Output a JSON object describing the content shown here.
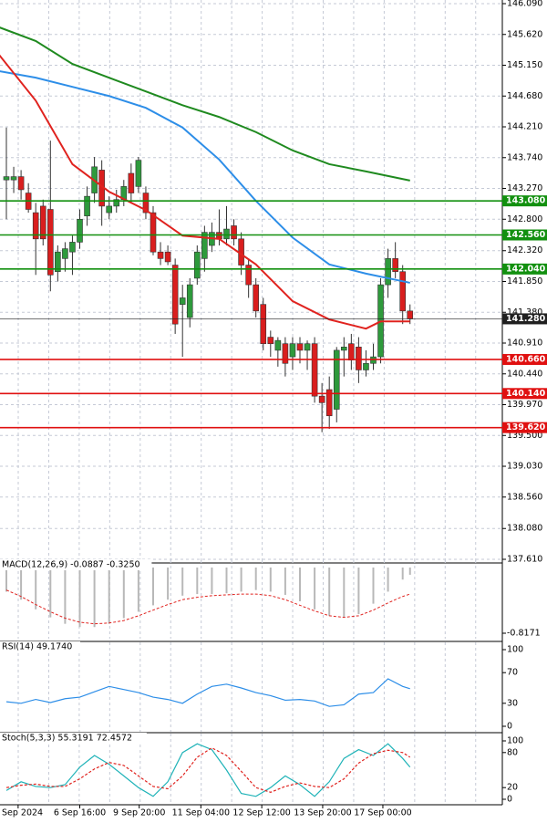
{
  "chart_data": [
    {
      "type": "candlestick",
      "x": [
        0,
        1,
        2,
        3,
        4,
        5,
        6,
        7,
        8,
        9,
        10,
        11,
        12,
        13,
        14,
        15,
        16,
        17,
        18,
        19,
        20,
        21,
        22,
        23,
        24,
        25,
        26,
        27,
        28,
        29,
        30,
        31,
        32,
        33,
        34,
        35,
        36,
        37,
        38,
        39,
        40,
        41,
        42,
        43,
        44,
        45,
        46,
        47,
        48,
        49,
        50,
        51,
        52,
        53,
        54,
        55
      ],
      "open": [
        143.4,
        143.4,
        143.45,
        143.2,
        142.9,
        143.0,
        142.95,
        142.0,
        142.2,
        142.3,
        142.45,
        142.85,
        143.2,
        143.55,
        142.9,
        143.0,
        143.1,
        143.5,
        143.3,
        143.2,
        142.9,
        142.3,
        142.3,
        142.1,
        141.5,
        141.3,
        141.9,
        142.2,
        142.4,
        142.6,
        142.5,
        142.7,
        142.5,
        142.1,
        141.8,
        141.5,
        141.0,
        140.8,
        140.9,
        140.7,
        140.9,
        140.8,
        140.9,
        140.1,
        140.2,
        139.9,
        140.8,
        140.9,
        140.85,
        140.5,
        140.6,
        140.7,
        141.8,
        142.2,
        142.0,
        141.4
      ],
      "high": [
        144.2,
        143.6,
        143.55,
        143.35,
        143.05,
        143.1,
        144.0,
        142.4,
        142.45,
        142.55,
        142.95,
        143.3,
        143.75,
        143.7,
        143.15,
        143.25,
        143.4,
        143.65,
        143.75,
        143.3,
        143.0,
        142.45,
        142.4,
        142.2,
        141.8,
        141.9,
        142.4,
        142.7,
        142.75,
        142.95,
        143.0,
        142.8,
        142.6,
        142.2,
        141.9,
        141.6,
        141.1,
        141.0,
        141.0,
        141.0,
        141.0,
        140.95,
        141.0,
        140.3,
        140.4,
        140.85,
        141.0,
        141.05,
        141.0,
        140.8,
        140.9,
        141.9,
        142.35,
        142.45,
        142.1,
        141.5
      ],
      "low": [
        142.8,
        143.2,
        143.1,
        142.9,
        141.95,
        142.4,
        141.7,
        141.85,
        142.0,
        141.95,
        142.35,
        142.7,
        143.05,
        142.7,
        142.8,
        142.9,
        143.0,
        143.05,
        143.2,
        142.8,
        142.25,
        142.1,
        142.1,
        141.05,
        140.7,
        141.15,
        141.8,
        142.0,
        142.3,
        142.4,
        142.4,
        142.4,
        141.95,
        141.6,
        141.3,
        140.8,
        140.7,
        140.55,
        140.4,
        140.5,
        140.6,
        140.5,
        140.0,
        139.55,
        139.6,
        139.7,
        140.4,
        140.5,
        140.3,
        140.4,
        140.5,
        140.6,
        141.6,
        141.9,
        141.2,
        141.2
      ],
      "close": [
        143.45,
        143.45,
        143.25,
        142.95,
        142.5,
        142.5,
        141.95,
        142.3,
        142.35,
        142.45,
        142.8,
        143.15,
        143.6,
        143.0,
        143.0,
        143.1,
        143.3,
        143.2,
        143.7,
        142.9,
        142.3,
        142.2,
        142.15,
        141.2,
        141.6,
        141.8,
        142.3,
        142.6,
        142.6,
        142.5,
        142.65,
        142.5,
        142.1,
        141.8,
        141.4,
        140.9,
        140.9,
        140.95,
        140.6,
        140.9,
        140.8,
        140.9,
        140.1,
        140.0,
        139.8,
        140.8,
        140.85,
        140.65,
        140.5,
        140.6,
        140.7,
        141.8,
        142.2,
        142.0,
        141.4,
        141.28
      ],
      "up_color": "#2e9a3c",
      "down_color": "#d91e1e",
      "series": [
        {
          "color": "#1f8a1f",
          "x": [
            -1,
            4,
            9,
            14,
            19,
            24,
            29,
            34,
            39,
            44,
            49,
            55
          ],
          "values": [
            145.73,
            145.52,
            145.17,
            144.96,
            144.75,
            144.54,
            144.36,
            144.13,
            143.85,
            143.64,
            143.53,
            143.39
          ]
        },
        {
          "color": "#2d8ee8",
          "x": [
            -1,
            4,
            9,
            14,
            19,
            24,
            29,
            34,
            39,
            44,
            49,
            55
          ],
          "values": [
            145.06,
            144.96,
            144.82,
            144.68,
            144.5,
            144.2,
            143.71,
            143.08,
            142.52,
            142.11,
            141.97,
            141.83
          ]
        },
        {
          "color": "#e0231f",
          "x": [
            -1,
            4,
            9,
            14,
            19,
            24,
            29,
            34,
            39,
            44,
            49,
            51,
            55
          ],
          "values": [
            145.31,
            144.61,
            143.64,
            143.22,
            142.94,
            142.55,
            142.5,
            142.11,
            141.55,
            141.27,
            141.13,
            141.24,
            141.24
          ]
        }
      ],
      "levels": {
        "values": [
          143.08,
          142.56,
          142.04,
          141.28,
          140.66,
          140.14,
          139.62
        ],
        "value_labels": [
          "143.080",
          "142.560",
          "142.040",
          "141.280",
          "140.660",
          "140.140",
          "139.620"
        ],
        "colors": [
          "#12900f",
          "#12900f",
          "#12900f",
          "#202020",
          "#e01010",
          "#e01010",
          "#e01010"
        ]
      },
      "ylim": [
        137.61,
        146.09
      ],
      "yticks": [
        {
          "value": 146.09,
          "label": "146.090"
        },
        {
          "value": 145.62,
          "label": "145.620"
        },
        {
          "value": 145.15,
          "label": "145.150"
        },
        {
          "value": 144.68,
          "label": "144.680"
        },
        {
          "value": 144.21,
          "label": "144.210"
        },
        {
          "value": 143.74,
          "label": "143.740"
        },
        {
          "value": 143.27,
          "label": "143.270"
        },
        {
          "value": 142.8,
          "label": "142.800"
        },
        {
          "value": 142.32,
          "label": "142.320"
        },
        {
          "value": 141.85,
          "label": "141.850"
        },
        {
          "value": 141.38,
          "label": "141.380"
        },
        {
          "value": 140.91,
          "label": "140.910"
        },
        {
          "value": 140.44,
          "label": "140.440"
        },
        {
          "value": 139.97,
          "label": "139.970"
        },
        {
          "value": 139.5,
          "label": "139.500"
        },
        {
          "value": 139.03,
          "label": "139.030"
        },
        {
          "value": 138.56,
          "label": "138.560"
        },
        {
          "value": 138.08,
          "label": "138.080"
        },
        {
          "value": 137.61,
          "label": "137.610"
        }
      ],
      "xticks": [
        {
          "value": 1.6,
          "label": "Sep 2024"
        },
        {
          "value": 10,
          "label": "6 Sep 16:00"
        },
        {
          "value": 18.1,
          "label": "9 Sep 20:00"
        },
        {
          "value": 26.5,
          "label": "11 Sep 04:00"
        },
        {
          "value": 34.8,
          "label": "12 Sep 12:00"
        },
        {
          "value": 43.1,
          "label": "13 Sep 20:00"
        },
        {
          "value": 51.3,
          "label": "17 Sep 00:00"
        }
      ],
      "grid": true
    },
    {
      "type": "macd",
      "title": "MACD(12,26,9) -0.0887 -0.3250",
      "x": [
        0,
        2,
        4,
        6,
        8,
        10,
        12,
        14,
        16,
        18,
        20,
        22,
        24,
        26,
        28,
        30,
        32,
        34,
        36,
        38,
        40,
        42,
        44,
        46,
        48,
        50,
        52,
        54,
        55
      ],
      "series": [
        {
          "color": "#b8b8b8",
          "values": [
            -0.3,
            -0.4,
            -0.52,
            -0.62,
            -0.7,
            -0.74,
            -0.74,
            -0.7,
            -0.63,
            -0.55,
            -0.47,
            -0.4,
            -0.35,
            -0.33,
            -0.33,
            -0.32,
            -0.3,
            -0.28,
            -0.3,
            -0.34,
            -0.42,
            -0.52,
            -0.6,
            -0.62,
            -0.58,
            -0.45,
            -0.3,
            -0.15,
            -0.09
          ]
        },
        {
          "color": "#e0231f",
          "values": [
            -0.28,
            -0.36,
            -0.46,
            -0.55,
            -0.63,
            -0.68,
            -0.7,
            -0.69,
            -0.66,
            -0.6,
            -0.53,
            -0.46,
            -0.4,
            -0.37,
            -0.35,
            -0.34,
            -0.33,
            -0.33,
            -0.35,
            -0.4,
            -0.47,
            -0.54,
            -0.6,
            -0.62,
            -0.6,
            -0.53,
            -0.44,
            -0.36,
            -0.33
          ]
        }
      ],
      "ylim": [
        -0.8171,
        0
      ],
      "yticks": [
        -0.8171
      ]
    },
    {
      "type": "line",
      "title": "RSI(14) 49.1740",
      "x": [
        0,
        2,
        4,
        6,
        8,
        10,
        12,
        14,
        16,
        18,
        20,
        22,
        24,
        26,
        28,
        30,
        32,
        34,
        36,
        38,
        40,
        42,
        44,
        46,
        48,
        50,
        52,
        54,
        55
      ],
      "series": [
        {
          "color": "#2d8ee8",
          "values": [
            32,
            30,
            35,
            31,
            36,
            38,
            45,
            52,
            48,
            44,
            38,
            35,
            30,
            42,
            52,
            55,
            50,
            44,
            40,
            34,
            35,
            33,
            26,
            28,
            42,
            44,
            62,
            52,
            49
          ]
        }
      ],
      "ylim": [
        0,
        100
      ],
      "yticks": [
        0,
        30,
        70,
        100
      ]
    },
    {
      "type": "line",
      "title": "Stoch(5,3,3) 55.3191 72.4572",
      "x": [
        0,
        2,
        4,
        6,
        8,
        10,
        12,
        14,
        16,
        18,
        20,
        22,
        24,
        26,
        28,
        30,
        32,
        34,
        36,
        38,
        40,
        42,
        44,
        46,
        48,
        50,
        52,
        54,
        55
      ],
      "series": [
        {
          "color": "#1fb3b8",
          "values": [
            15,
            30,
            22,
            20,
            25,
            55,
            75,
            60,
            40,
            20,
            5,
            30,
            80,
            95,
            85,
            50,
            10,
            5,
            20,
            40,
            25,
            5,
            30,
            70,
            85,
            75,
            95,
            70,
            55
          ]
        },
        {
          "color": "#e0231f",
          "dashed": true,
          "values": [
            20,
            24,
            26,
            22,
            22,
            35,
            52,
            63,
            58,
            40,
            22,
            18,
            40,
            72,
            88,
            75,
            48,
            20,
            12,
            22,
            28,
            22,
            20,
            35,
            62,
            78,
            84,
            80,
            72
          ]
        }
      ],
      "ylim": [
        0,
        100
      ],
      "yticks": [
        0,
        20,
        80,
        100
      ]
    }
  ]
}
